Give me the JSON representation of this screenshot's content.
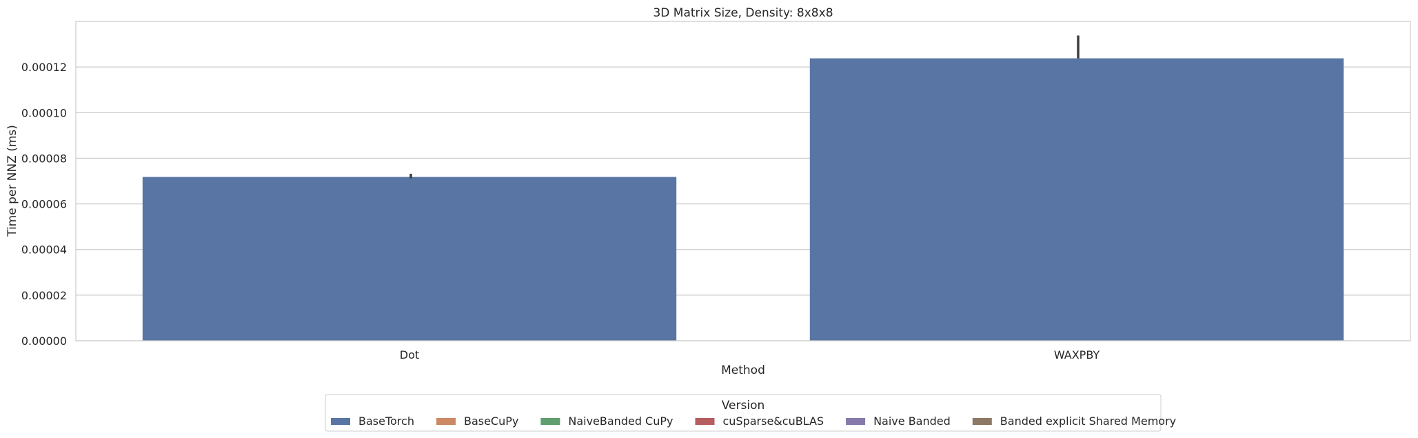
{
  "chart_data": {
    "type": "bar",
    "title": "3D Matrix Size, Density: 8x8x8",
    "xlabel": "Method",
    "ylabel": "Time per NNZ (ms)",
    "categories": [
      "Dot",
      "WAXPBY"
    ],
    "ylim": [
      0,
      0.00014
    ],
    "yticks": [
      "0.00000",
      "0.00002",
      "0.00004",
      "0.00006",
      "0.00008",
      "0.00010",
      "0.00012"
    ],
    "grid": true,
    "series": [
      {
        "name": "BaseTorch",
        "color": "#5975a4",
        "values": [
          7.18e-05,
          0.0001238
        ],
        "error": [
          [
            7.12e-05,
            7.32e-05
          ],
          [
            0.0001238,
            0.0001338
          ]
        ]
      }
    ],
    "legend": {
      "title": "Version",
      "position": "bottom-center",
      "entries": [
        {
          "name": "BaseTorch",
          "color": "#5975a4"
        },
        {
          "name": "BaseCuPy",
          "color": "#cc8963"
        },
        {
          "name": "NaiveBanded CuPy",
          "color": "#5f9e6e"
        },
        {
          "name": "cuSparse&cuBLAS",
          "color": "#b55d60"
        },
        {
          "name": "Naive Banded",
          "color": "#857aab"
        },
        {
          "name": "Banded explicit Shared Memory",
          "color": "#8d7866"
        }
      ]
    }
  }
}
